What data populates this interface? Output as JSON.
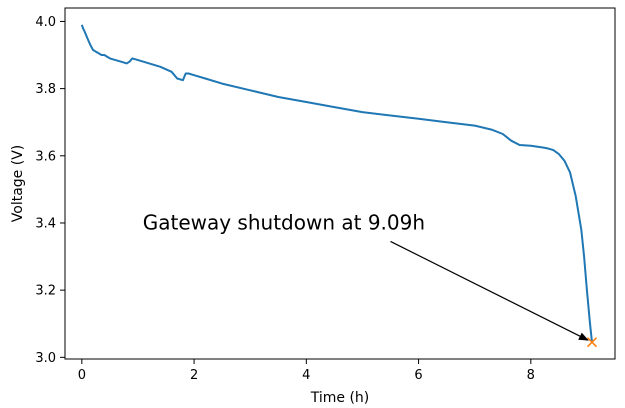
{
  "chart_data": {
    "type": "line",
    "title": "",
    "xlabel": "Time (h)",
    "ylabel": "Voltage (V)",
    "xlim": [
      -0.3,
      9.5
    ],
    "ylim": [
      2.995,
      4.04
    ],
    "xticks": [
      0,
      2,
      4,
      6,
      8
    ],
    "xtick_labels": [
      "0",
      "2",
      "4",
      "6",
      "8"
    ],
    "yticks": [
      3.0,
      3.2,
      3.4,
      3.6,
      3.8,
      4.0
    ],
    "ytick_labels": [
      "3.0",
      "3.2",
      "3.4",
      "3.6",
      "3.8",
      "4.0"
    ],
    "grid": false,
    "series": [
      {
        "color": "#1f77b4",
        "x": [
          0,
          0.02,
          0.05,
          0.1,
          0.15,
          0.2,
          0.25,
          0.3,
          0.35,
          0.4,
          0.5,
          0.6,
          0.7,
          0.8,
          0.85,
          0.9,
          1.0,
          1.2,
          1.4,
          1.6,
          1.7,
          1.8,
          1.85,
          1.9,
          2.0,
          2.2,
          2.5,
          3.0,
          3.5,
          4.0,
          4.5,
          5.0,
          5.5,
          6.0,
          6.5,
          7.0,
          7.3,
          7.5,
          7.65,
          7.8,
          8.0,
          8.2,
          8.3,
          8.4,
          8.5,
          8.6,
          8.7,
          8.8,
          8.9,
          8.95,
          9.0,
          9.05,
          9.07,
          9.09
        ],
        "y": [
          3.99,
          3.98,
          3.97,
          3.95,
          3.93,
          3.915,
          3.91,
          3.905,
          3.9,
          3.9,
          3.89,
          3.885,
          3.88,
          3.875,
          3.88,
          3.89,
          3.885,
          3.875,
          3.865,
          3.85,
          3.83,
          3.825,
          3.845,
          3.845,
          3.84,
          3.83,
          3.815,
          3.795,
          3.775,
          3.76,
          3.745,
          3.73,
          3.72,
          3.71,
          3.7,
          3.69,
          3.678,
          3.665,
          3.645,
          3.632,
          3.63,
          3.625,
          3.622,
          3.617,
          3.605,
          3.585,
          3.55,
          3.48,
          3.38,
          3.3,
          3.2,
          3.11,
          3.075,
          3.045
        ]
      }
    ],
    "marker": {
      "x": 9.09,
      "y": 3.045,
      "symbol": "x",
      "color": "#ff7f0e"
    },
    "annotation": {
      "text": "Gateway shutdown at 9.09h",
      "text_x": 3.6,
      "text_y": 3.38,
      "arrow_start_x": 5.5,
      "arrow_start_y": 3.345,
      "target_x": 9.09,
      "target_y": 3.045
    }
  }
}
